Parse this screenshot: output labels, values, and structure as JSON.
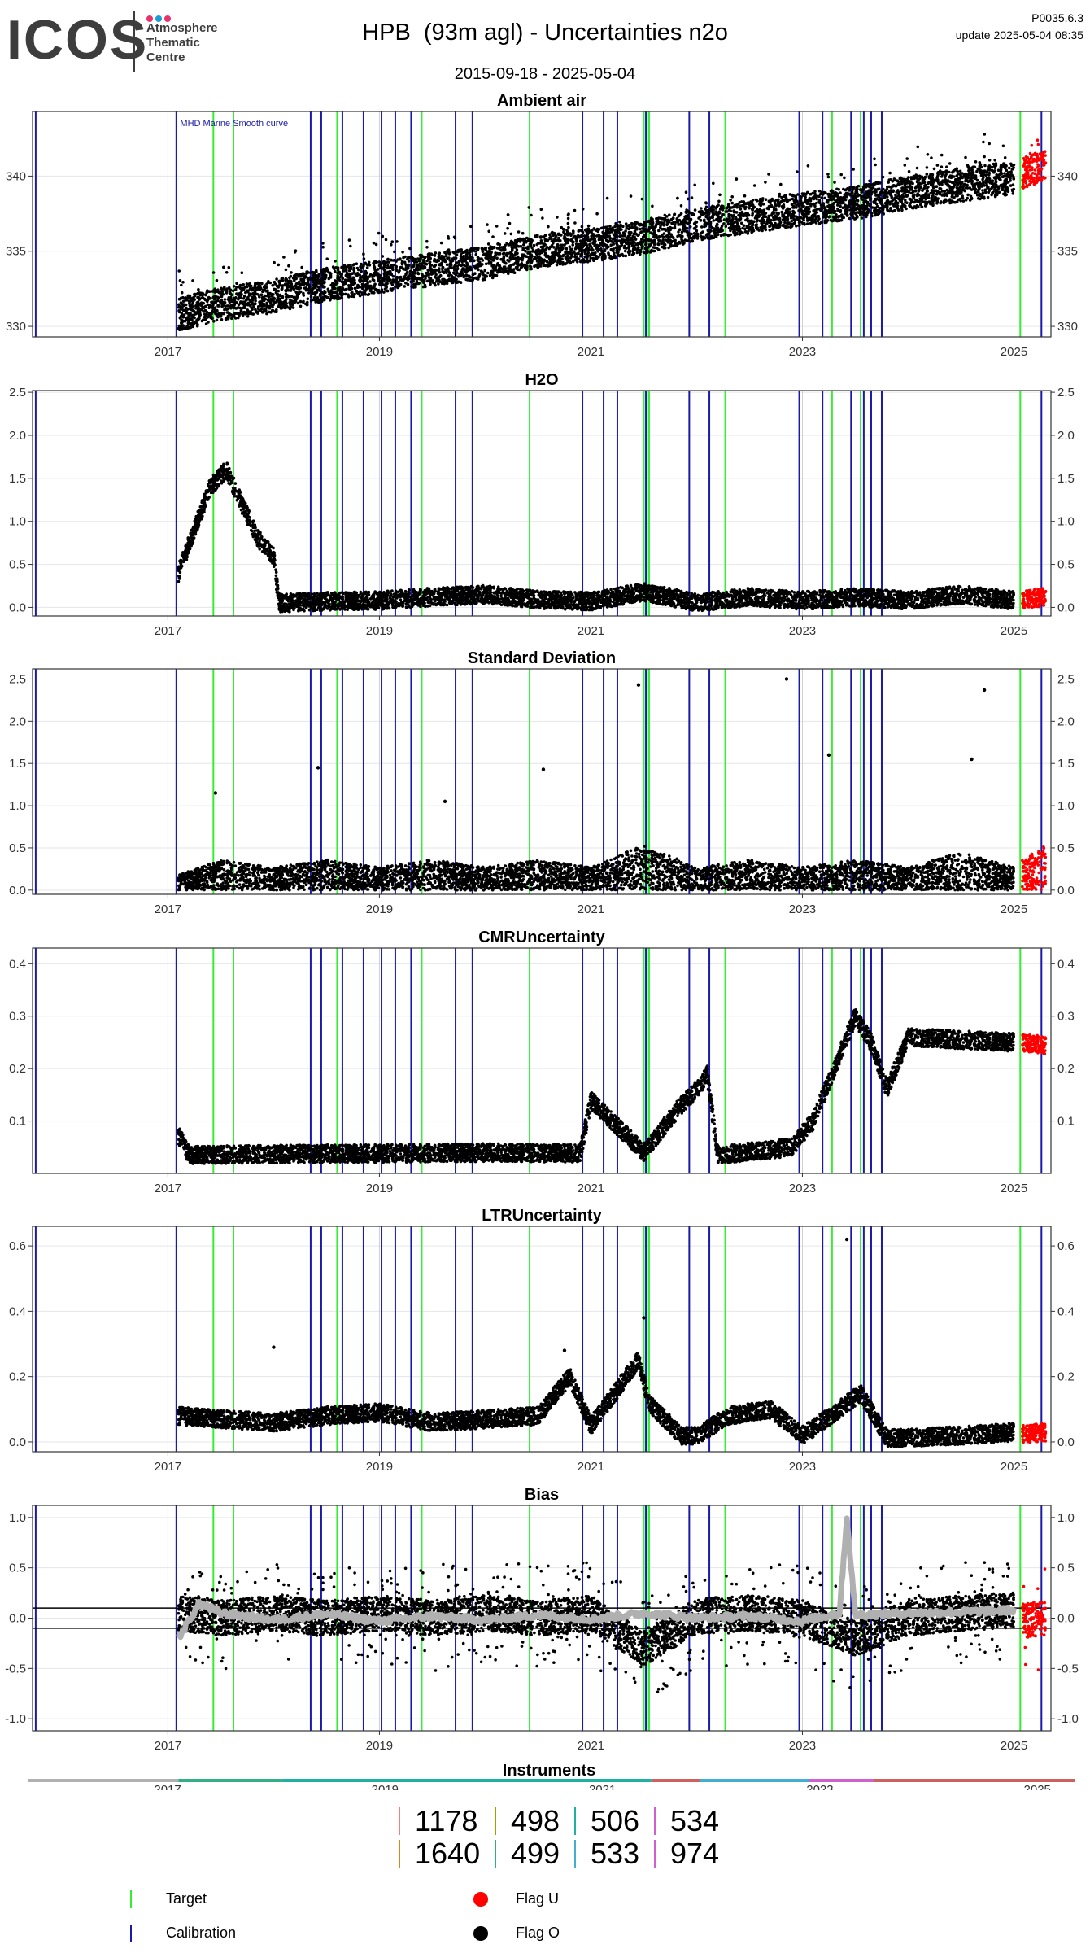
{
  "header": {
    "logo_text": "ICOS",
    "logo_sub": [
      "Atmosphere",
      "Thematic",
      "Centre"
    ],
    "logo_dot_colors": [
      "#e8316f",
      "#1e9ad6",
      "#e8316f"
    ],
    "title": "HPB  (93m agl) - Uncertainties n2o",
    "version": "P0035.6.3",
    "update": "update  2025-05-04 08:35",
    "date_range": "2015-09-18 - 2025-05-04"
  },
  "colors": {
    "target": "#33ee33",
    "calibration": "#1a1aaa",
    "flag_u": "#ff0000",
    "flag_o": "#000000",
    "smooth": "#b0b0b0",
    "bias_orange": "#f0a020"
  },
  "x_axis": {
    "min": 2015.72,
    "max": 2025.35,
    "ticks": [
      2017,
      2019,
      2021,
      2023,
      2025
    ],
    "tick_labels": [
      "2017",
      "2019",
      "2021",
      "2023",
      "2025"
    ]
  },
  "markers": {
    "calibration": [
      2015.75,
      2017.08,
      2018.35,
      2018.45,
      2018.65,
      2018.85,
      2019.02,
      2019.15,
      2019.3,
      2019.72,
      2019.88,
      2020.92,
      2021.12,
      2021.25,
      2021.52,
      2021.93,
      2022.12,
      2022.97,
      2023.19,
      2023.46,
      2023.58,
      2023.65,
      2023.75,
      2025.26
    ],
    "target": [
      2017.43,
      2017.62,
      2018.6,
      2019.4,
      2020.42,
      2021.5,
      2021.53,
      2021.55,
      2022.27,
      2023.28,
      2023.55,
      2025.06
    ]
  },
  "chart_data": [
    {
      "type": "scatter",
      "title": "Ambient air",
      "ylim": [
        329.3,
        344.3
      ],
      "yticks": [
        330,
        335,
        340
      ],
      "annotation": "MHD Marine Smooth curve",
      "series": [
        {
          "flag": "O",
          "x": [
            2017.1,
            2017.5,
            2018.0,
            2018.5,
            2019.0,
            2019.5,
            2020.0,
            2020.5,
            2021.0,
            2021.5,
            2022.0,
            2022.5,
            2023.0,
            2023.5,
            2024.0,
            2024.5,
            2025.0
          ],
          "y": [
            330.8,
            331.5,
            332.0,
            332.8,
            333.3,
            333.8,
            334.2,
            335.0,
            335.4,
            335.9,
            336.8,
            337.3,
            337.8,
            338.2,
            338.9,
            339.4,
            339.9
          ]
        },
        {
          "flag": "U",
          "x": [
            2025.08,
            2025.3
          ],
          "y": [
            340.2,
            340.9
          ]
        }
      ]
    },
    {
      "type": "scatter",
      "title": "H2O",
      "ylim": [
        -0.1,
        2.52
      ],
      "yticks": [
        0.0,
        0.5,
        1.0,
        1.5,
        2.0,
        2.5
      ],
      "ytick_labels": [
        "0.0",
        "0.5",
        "1.0",
        "1.5",
        "2.0",
        "2.5"
      ],
      "series": [
        {
          "flag": "O",
          "x": [
            2017.1,
            2017.25,
            2017.4,
            2017.55,
            2017.7,
            2017.85,
            2018.0,
            2018.05,
            2018.5,
            2019.0,
            2019.5,
            2020.0,
            2020.5,
            2021.0,
            2021.5,
            2022.0,
            2022.5,
            2023.0,
            2023.5,
            2024.0,
            2024.5,
            2025.0
          ],
          "y": [
            0.4,
            0.9,
            1.4,
            1.6,
            1.2,
            0.8,
            0.6,
            0.05,
            0.07,
            0.08,
            0.12,
            0.15,
            0.09,
            0.07,
            0.18,
            0.06,
            0.12,
            0.08,
            0.12,
            0.08,
            0.15,
            0.08
          ]
        },
        {
          "flag": "U",
          "x": [
            2025.08,
            2025.3
          ],
          "y": [
            0.09,
            0.12
          ]
        }
      ]
    },
    {
      "type": "scatter",
      "title": "Standard Deviation",
      "ylim": [
        -0.05,
        2.62
      ],
      "yticks": [
        0.0,
        0.5,
        1.0,
        1.5,
        2.0,
        2.5
      ],
      "ytick_labels": [
        "0.0",
        "0.5",
        "1.0",
        "1.5",
        "2.0",
        "2.5"
      ],
      "series": [
        {
          "flag": "O",
          "x": [
            2017.1,
            2017.5,
            2018.0,
            2018.5,
            2019.0,
            2019.5,
            2020.0,
            2020.5,
            2021.0,
            2021.5,
            2022.0,
            2022.5,
            2023.0,
            2023.5,
            2024.0,
            2024.5,
            2025.0
          ],
          "y": [
            0.1,
            0.2,
            0.15,
            0.2,
            0.15,
            0.2,
            0.15,
            0.2,
            0.15,
            0.3,
            0.15,
            0.2,
            0.15,
            0.2,
            0.15,
            0.25,
            0.15
          ]
        },
        {
          "flag": "O",
          "x": [
            2017.45,
            2018.42,
            2019.62,
            2020.55,
            2021.45,
            2022.85,
            2023.25,
            2024.6,
            2024.72
          ],
          "y": [
            1.15,
            1.45,
            1.05,
            1.43,
            2.43,
            2.5,
            1.6,
            1.55,
            2.37
          ]
        },
        {
          "flag": "U",
          "x": [
            2025.08,
            2025.3
          ],
          "y": [
            0.2,
            0.3
          ]
        }
      ]
    },
    {
      "type": "scatter",
      "title": "CMRUncertainty",
      "ylim": [
        0.0,
        0.43
      ],
      "yticks": [
        0.1,
        0.2,
        0.3,
        0.4
      ],
      "ytick_labels": [
        "0.1",
        "0.2",
        "0.3",
        "0.4"
      ],
      "series": [
        {
          "flag": "O",
          "x": [
            2017.1,
            2017.2,
            2018.0,
            2019.0,
            2020.0,
            2020.9,
            2021.0,
            2021.5,
            2021.85,
            2022.0,
            2022.1,
            2022.2,
            2022.9,
            2023.1,
            2023.3,
            2023.5,
            2023.65,
            2023.8,
            2024.0,
            2024.5,
            2025.0
          ],
          "y": [
            0.073,
            0.035,
            0.037,
            0.038,
            0.04,
            0.038,
            0.14,
            0.04,
            0.13,
            0.16,
            0.19,
            0.035,
            0.05,
            0.1,
            0.2,
            0.3,
            0.25,
            0.16,
            0.26,
            0.255,
            0.25
          ]
        },
        {
          "flag": "U",
          "x": [
            2025.08,
            2025.3
          ],
          "y": [
            0.25,
            0.245
          ]
        }
      ]
    },
    {
      "type": "scatter",
      "title": "LTRUncertainty",
      "ylim": [
        -0.03,
        0.66
      ],
      "yticks": [
        0.0,
        0.2,
        0.4,
        0.6
      ],
      "ytick_labels": [
        "0.0",
        "0.2",
        "0.4",
        "0.6"
      ],
      "series": [
        {
          "flag": "O",
          "x": [
            2017.1,
            2017.5,
            2018.0,
            2018.5,
            2019.0,
            2019.5,
            2020.0,
            2020.5,
            2020.8,
            2021.0,
            2021.45,
            2021.55,
            2021.85,
            2022.0,
            2022.3,
            2022.7,
            2023.0,
            2023.35,
            2023.55,
            2023.8,
            2024.5,
            2025.0
          ],
          "y": [
            0.08,
            0.07,
            0.06,
            0.08,
            0.09,
            0.06,
            0.07,
            0.08,
            0.2,
            0.05,
            0.25,
            0.12,
            0.02,
            0.02,
            0.08,
            0.1,
            0.02,
            0.1,
            0.15,
            0.01,
            0.02,
            0.03
          ]
        },
        {
          "flag": "O",
          "x": [
            2018.0,
            2020.75,
            2021.5,
            2023.42
          ],
          "y": [
            0.29,
            0.28,
            0.38,
            0.62
          ]
        },
        {
          "flag": "U",
          "x": [
            2025.08,
            2025.3
          ],
          "y": [
            0.025,
            0.03
          ]
        }
      ]
    },
    {
      "type": "scatter",
      "title": "Bias",
      "ylim": [
        -1.12,
        1.12
      ],
      "yticks": [
        -1.0,
        -0.5,
        0.0,
        0.5,
        1.0
      ],
      "ytick_labels": [
        "-1.0",
        "-0.5",
        "0.0",
        "0.5",
        "1.0"
      ],
      "hlines": [
        0.1,
        -0.1
      ],
      "series": [
        {
          "flag": "O",
          "x": [
            2017.1,
            2017.5,
            2018.0,
            2018.5,
            2019.0,
            2019.5,
            2020.0,
            2020.5,
            2021.0,
            2021.5,
            2022.0,
            2022.5,
            2023.0,
            2023.5,
            2024.0,
            2024.5,
            2025.0
          ],
          "y": [
            0.05,
            0.0,
            0.05,
            0.0,
            0.05,
            0.0,
            0.05,
            0.0,
            0.05,
            -0.3,
            0.02,
            0.05,
            0.0,
            -0.2,
            0.0,
            0.05,
            0.08
          ]
        },
        {
          "flag": "smooth",
          "x": [
            2017.1,
            2017.3,
            2017.5,
            2018.0,
            2018.5,
            2019.0,
            2019.5,
            2020.0,
            2020.5,
            2021.0,
            2021.5,
            2022.0,
            2022.5,
            2023.0,
            2023.35,
            2023.42,
            2023.5,
            2024.0,
            2024.5,
            2025.0
          ],
          "y": [
            -0.2,
            0.15,
            0.05,
            -0.02,
            0.04,
            -0.03,
            0.02,
            -0.02,
            0.03,
            -0.01,
            0.05,
            0.0,
            0.02,
            -0.03,
            0.05,
            1.0,
            0.03,
            0.05,
            0.06,
            0.08
          ]
        },
        {
          "flag": "U",
          "x": [
            2025.08,
            2025.3
          ],
          "y": [
            -0.02,
            0.0
          ]
        }
      ]
    },
    {
      "type": "bar",
      "title": "Instruments",
      "instruments": [
        "1178",
        "498",
        "506",
        "534",
        "1640",
        "499",
        "533",
        "974"
      ],
      "instrument_colors": [
        "#f08080",
        "#a0a000",
        "#20b0a0",
        "#d060d0",
        "#d08a20",
        "#30b080",
        "#40b0d0",
        "#d060d0"
      ],
      "timeline": [
        {
          "from": 2015.72,
          "to": 2017.1,
          "color": "#b0b0b0"
        },
        {
          "from": 2017.1,
          "to": 2018.05,
          "color": "#30b080"
        },
        {
          "from": 2018.05,
          "to": 2021.45,
          "color": "#20b0a0"
        },
        {
          "from": 2021.45,
          "to": 2021.9,
          "color": "#d06060"
        },
        {
          "from": 2021.9,
          "to": 2022.9,
          "color": "#40b0d0"
        },
        {
          "from": 2022.9,
          "to": 2023.5,
          "color": "#d060d0"
        },
        {
          "from": 2023.5,
          "to": 2025.35,
          "color": "#d06060"
        }
      ]
    }
  ],
  "legend": {
    "target_label": "Target",
    "calibration_label": "Calibration",
    "flag_u_label": "Flag U",
    "flag_o_label": "Flag O"
  }
}
